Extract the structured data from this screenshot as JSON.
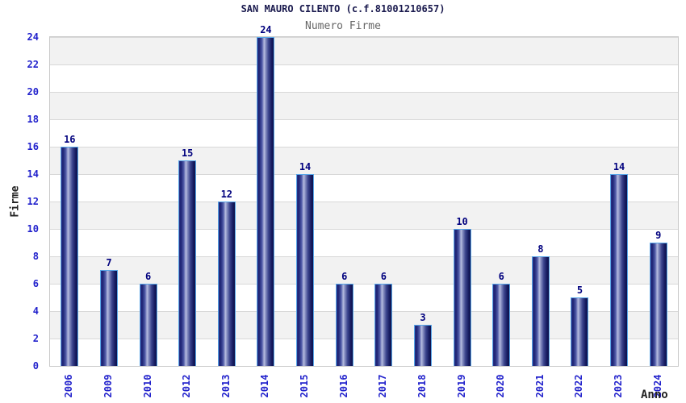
{
  "chart_data": {
    "type": "bar",
    "title": "SAN MAURO CILENTO (c.f.81001210657)",
    "subtitle": "Numero Firme",
    "xlabel": "Anno",
    "ylabel": "Firme",
    "categories": [
      "2006",
      "2009",
      "2010",
      "2012",
      "2013",
      "2014",
      "2015",
      "2016",
      "2017",
      "2018",
      "2019",
      "2020",
      "2021",
      "2022",
      "2023",
      "2024"
    ],
    "values": [
      16,
      7,
      6,
      15,
      12,
      24,
      14,
      6,
      6,
      3,
      10,
      6,
      8,
      5,
      14,
      9
    ],
    "ylim": [
      0,
      24
    ],
    "ytick_step": 2,
    "grid": true,
    "band_stripes": true,
    "legend": "none",
    "bar_value_labels": true
  },
  "colors": {
    "title_text": "#1a1a4e",
    "subtitle_text": "#666666",
    "axis_tick_text": "#2222cc",
    "bar_value_text": "#00007e",
    "axis_title_text": "#222222",
    "bar_border": "#58a6e8",
    "bar_dark": "#1c2272",
    "bar_highlight": "#b7bde0",
    "band_gray": "#f2f2f2",
    "gridline": "#d8d8d8",
    "plot_border": "#c9c9c9",
    "background": "#ffffff"
  }
}
